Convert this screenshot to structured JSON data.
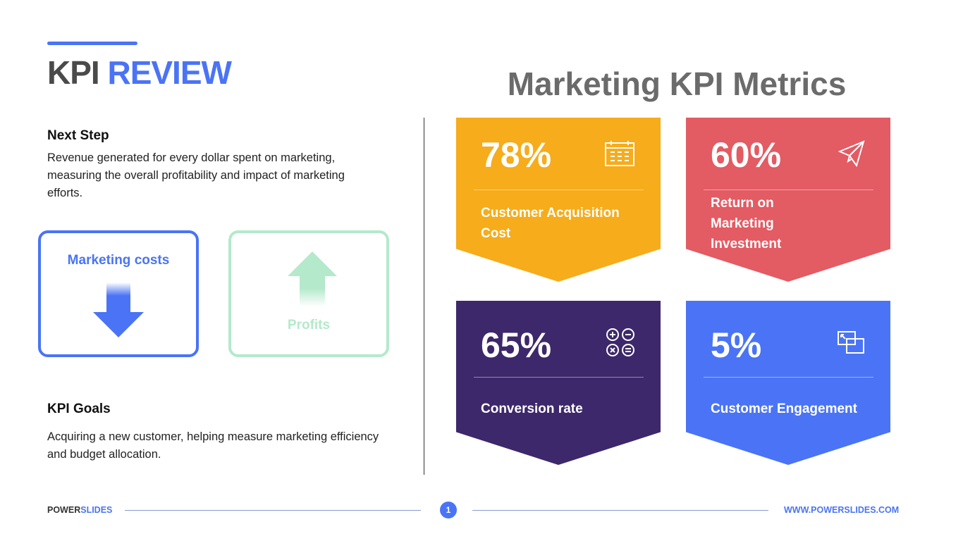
{
  "header": {
    "title_part1": "KPI",
    "title_part2": "REVIEW",
    "right_title": "Marketing KPI Metrics"
  },
  "left": {
    "next_step": {
      "heading": "Next Step",
      "text": "Revenue generated for every dollar spent on marketing, measuring the overall profitability and impact of marketing efforts."
    },
    "boxes": [
      {
        "label": "Marketing costs",
        "direction": "down",
        "color": "#4a74f5"
      },
      {
        "label": "Profits",
        "direction": "up",
        "color": "#b4e9cb"
      }
    ],
    "kpi_goals": {
      "heading": "KPI Goals",
      "text": "Acquiring a new customer, helping measure marketing efficiency and budget allocation."
    }
  },
  "cards": [
    {
      "value": "78%",
      "label": "Customer Acquisition Cost",
      "icon": "calendar-icon",
      "color": "#f6ac1b"
    },
    {
      "value": "60%",
      "label": "Return on Marketing Investment",
      "icon": "paper-plane-icon",
      "color": "#e35b63"
    },
    {
      "value": "65%",
      "label": "Conversion rate",
      "icon": "calculator-operations-icon",
      "color": "#3d286b"
    },
    {
      "value": "5%",
      "label": "Customer Engagement",
      "icon": "resize-windows-icon",
      "color": "#4a74f5"
    }
  ],
  "footer": {
    "brand_part1": "POWER",
    "brand_part2": "SLIDES",
    "page": "1",
    "url": "WWW.POWERSLIDES.COM"
  }
}
